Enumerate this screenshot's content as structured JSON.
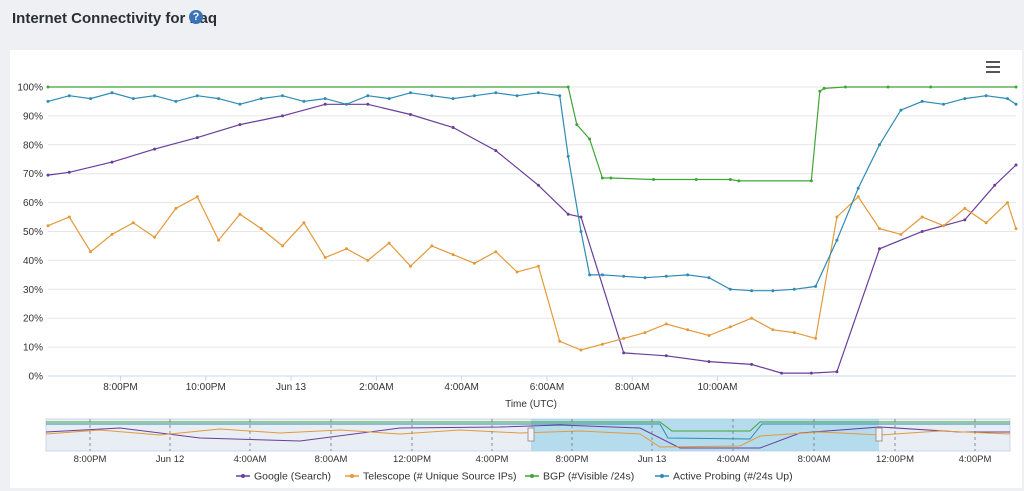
{
  "header": {
    "title": "Internet Connectivity for Iraq",
    "help_icon": "?"
  },
  "colors": {
    "google": "#6a3d9a",
    "telescope": "#e39a3a",
    "bgp": "#3fa535",
    "probing": "#2e8bb5",
    "navigator_fill": "#9fd4ea"
  },
  "chart_data": {
    "type": "line",
    "xlabel": "Time (UTC)",
    "ylabel": "",
    "ylim": [
      0,
      100
    ],
    "y_ticks": [
      "0%",
      "10%",
      "20%",
      "30%",
      "40%",
      "50%",
      "60%",
      "70%",
      "80%",
      "90%",
      "100%"
    ],
    "x_ticks": [
      "8:00PM",
      "10:00PM",
      "Jun 13",
      "2:00AM",
      "4:00AM",
      "6:00AM",
      "8:00AM",
      "10:00AM"
    ],
    "x_range_hours": [
      -5.7,
      17.0
    ],
    "grid": true,
    "legend_position": "bottom",
    "series": [
      {
        "name": "Google (Search)",
        "key": "google",
        "x": [
          -5.7,
          -5.2,
          -4.2,
          -3.2,
          -2.2,
          -1.2,
          -0.2,
          0.8,
          1.8,
          2.8,
          3.8,
          4.8,
          5.8,
          6.5,
          6.8,
          7.8,
          8.8,
          9.8,
          10.8,
          11.5,
          12.2,
          12.8,
          13.8,
          14.8,
          15.8,
          16.5,
          17.0
        ],
        "y": [
          69.5,
          70.5,
          74,
          78.5,
          82.5,
          87,
          90,
          94,
          94,
          90.5,
          86,
          78,
          66,
          56,
          55,
          8,
          7,
          5,
          4,
          1,
          1,
          1.5,
          44,
          50,
          54,
          66,
          73
        ]
      },
      {
        "name": "Telescope (# Unique Source IPs)",
        "key": "telescope",
        "x": [
          -5.7,
          -5.2,
          -4.7,
          -4.2,
          -3.7,
          -3.2,
          -2.7,
          -2.2,
          -1.7,
          -1.2,
          -0.7,
          -0.2,
          0.3,
          0.8,
          1.3,
          1.8,
          2.3,
          2.8,
          3.3,
          3.8,
          4.3,
          4.8,
          5.3,
          5.8,
          6.3,
          6.8,
          7.3,
          7.8,
          8.3,
          8.8,
          9.3,
          9.8,
          10.3,
          10.8,
          11.3,
          11.8,
          12.3,
          12.8,
          13.3,
          13.8,
          14.3,
          14.8,
          15.3,
          15.8,
          16.3,
          16.8,
          17.0
        ],
        "y": [
          52,
          55,
          43,
          49,
          53,
          48,
          58,
          62,
          47,
          56,
          51,
          45,
          53,
          41,
          44,
          40,
          46,
          38,
          45,
          42,
          39,
          43,
          36,
          38,
          12,
          9,
          11,
          13,
          15,
          18,
          16,
          14,
          17,
          20,
          16,
          15,
          13,
          55,
          62,
          51,
          49,
          55,
          52,
          58,
          53,
          60,
          51
        ]
      },
      {
        "name": "BGP (#Visible /24s)",
        "key": "bgp",
        "x": [
          -5.7,
          6.5,
          6.7,
          7.0,
          7.3,
          7.5,
          8.5,
          9.5,
          10.3,
          10.5,
          12.2,
          12.4,
          12.5,
          13.0,
          14.0,
          15.0,
          17.0
        ],
        "y": [
          100,
          100,
          87,
          82,
          68.5,
          68.5,
          68,
          68,
          68,
          67.5,
          67.5,
          98.5,
          99.5,
          100,
          100,
          100,
          100
        ]
      },
      {
        "name": "Active Probing (#/24s Up)",
        "key": "probing",
        "x": [
          -5.7,
          -5.2,
          -4.7,
          -4.2,
          -3.7,
          -3.2,
          -2.7,
          -2.2,
          -1.7,
          -1.2,
          -0.7,
          -0.2,
          0.3,
          0.8,
          1.3,
          1.8,
          2.3,
          2.8,
          3.3,
          3.8,
          4.3,
          4.8,
          5.3,
          5.8,
          6.3,
          6.5,
          6.8,
          7.0,
          7.3,
          7.8,
          8.3,
          8.8,
          9.3,
          9.8,
          10.3,
          10.8,
          11.3,
          11.8,
          12.3,
          12.8,
          13.3,
          13.8,
          14.3,
          14.8,
          15.3,
          15.8,
          16.3,
          16.8,
          17.0
        ],
        "y": [
          95,
          97,
          96,
          98,
          96,
          97,
          95,
          97,
          96,
          94,
          96,
          97,
          95,
          96,
          94,
          97,
          96,
          98,
          97,
          96,
          97,
          98,
          97,
          98,
          97,
          76,
          50,
          35,
          35,
          34.5,
          34,
          34.5,
          35,
          34,
          30,
          29.5,
          29.5,
          30,
          31,
          47,
          65,
          80,
          92,
          95,
          94,
          96,
          97,
          96,
          94
        ]
      }
    ]
  },
  "navigator": {
    "ticks": [
      "8:00PM",
      "Jun 12",
      "4:00AM",
      "8:00AM",
      "12:00PM",
      "4:00PM",
      "8:00PM",
      "Jun 13",
      "4:00AM",
      "8:00AM",
      "12:00PM",
      "4:00PM"
    ]
  },
  "legend": [
    {
      "key": "google",
      "label": "Google (Search)"
    },
    {
      "key": "telescope",
      "label": "Telescope (# Unique Source IPs)"
    },
    {
      "key": "bgp",
      "label": "BGP (#Visible /24s)"
    },
    {
      "key": "probing",
      "label": "Active Probing (#/24s Up)"
    }
  ]
}
